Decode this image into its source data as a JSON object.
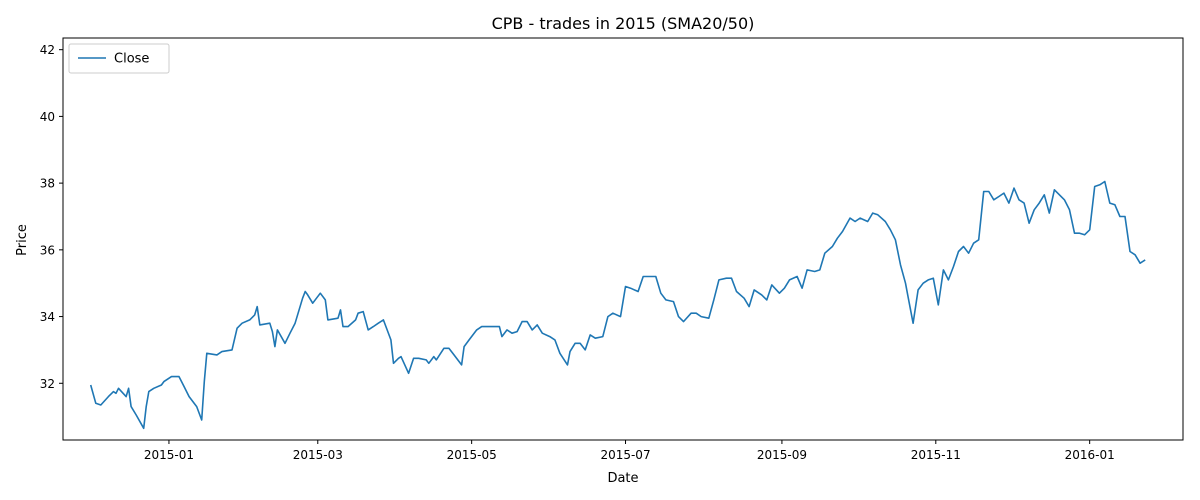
{
  "chart_data": {
    "type": "line",
    "title": "CPB - trades in 2015 (SMA20/50)",
    "xlabel": "Date",
    "ylabel": "Price",
    "xlim": [
      "2014-11-20",
      "2016-02-07"
    ],
    "ylim": [
      30.3,
      42.35
    ],
    "x_ticks": [
      "2015-01-01",
      "2015-03-01",
      "2015-05-01",
      "2015-07-01",
      "2015-09-01",
      "2015-11-01",
      "2016-01-01"
    ],
    "x_tick_labels": [
      "2015-01",
      "2015-03",
      "2015-05",
      "2015-07",
      "2015-09",
      "2015-11",
      "2016-01"
    ],
    "y_ticks": [
      32,
      34,
      36,
      38,
      40,
      42
    ],
    "y_tick_labels": [
      "32",
      "34",
      "36",
      "38",
      "40",
      "42"
    ],
    "grid": false,
    "legend_position": "top-left",
    "series": [
      {
        "name": "Close",
        "color": "#1f77b4",
        "points": [
          [
            "2014-12-01",
            31.95
          ],
          [
            "2014-12-03",
            31.4
          ],
          [
            "2014-12-05",
            31.35
          ],
          [
            "2014-12-08",
            31.6
          ],
          [
            "2014-12-10",
            31.75
          ],
          [
            "2014-12-11",
            31.7
          ],
          [
            "2014-12-12",
            31.85
          ],
          [
            "2014-12-15",
            31.6
          ],
          [
            "2014-12-16",
            31.85
          ],
          [
            "2014-12-17",
            31.3
          ],
          [
            "2014-12-19",
            31.05
          ],
          [
            "2014-12-22",
            30.65
          ],
          [
            "2014-12-23",
            31.3
          ],
          [
            "2014-12-24",
            31.75
          ],
          [
            "2014-12-26",
            31.85
          ],
          [
            "2014-12-29",
            31.95
          ],
          [
            "2014-12-30",
            32.05
          ],
          [
            "2015-01-02",
            32.2
          ],
          [
            "2015-01-05",
            32.2
          ],
          [
            "2015-01-07",
            31.9
          ],
          [
            "2015-01-09",
            31.6
          ],
          [
            "2015-01-12",
            31.3
          ],
          [
            "2015-01-14",
            30.9
          ],
          [
            "2015-01-15",
            32.05
          ],
          [
            "2015-01-16",
            32.9
          ],
          [
            "2015-01-20",
            32.85
          ],
          [
            "2015-01-22",
            32.95
          ],
          [
            "2015-01-26",
            33.0
          ],
          [
            "2015-01-28",
            33.65
          ],
          [
            "2015-01-30",
            33.8
          ],
          [
            "2015-02-02",
            33.9
          ],
          [
            "2015-02-04",
            34.05
          ],
          [
            "2015-02-05",
            34.3
          ],
          [
            "2015-02-06",
            33.75
          ],
          [
            "2015-02-10",
            33.8
          ],
          [
            "2015-02-11",
            33.55
          ],
          [
            "2015-02-12",
            33.1
          ],
          [
            "2015-02-13",
            33.6
          ],
          [
            "2015-02-16",
            33.2
          ],
          [
            "2015-02-18",
            33.5
          ],
          [
            "2015-02-20",
            33.8
          ],
          [
            "2015-02-23",
            34.55
          ],
          [
            "2015-02-24",
            34.75
          ],
          [
            "2015-02-25",
            34.65
          ],
          [
            "2015-02-27",
            34.4
          ],
          [
            "2015-03-02",
            34.7
          ],
          [
            "2015-03-04",
            34.5
          ],
          [
            "2015-03-05",
            33.9
          ],
          [
            "2015-03-09",
            33.95
          ],
          [
            "2015-03-10",
            34.2
          ],
          [
            "2015-03-11",
            33.7
          ],
          [
            "2015-03-13",
            33.7
          ],
          [
            "2015-03-16",
            33.9
          ],
          [
            "2015-03-17",
            34.1
          ],
          [
            "2015-03-19",
            34.15
          ],
          [
            "2015-03-21",
            33.6
          ],
          [
            "2015-03-23",
            33.7
          ],
          [
            "2015-03-25",
            33.8
          ],
          [
            "2015-03-27",
            33.9
          ],
          [
            "2015-03-30",
            33.3
          ],
          [
            "2015-03-31",
            32.6
          ],
          [
            "2015-04-02",
            32.75
          ],
          [
            "2015-04-03",
            32.8
          ],
          [
            "2015-04-06",
            32.3
          ],
          [
            "2015-04-08",
            32.75
          ],
          [
            "2015-04-10",
            32.75
          ],
          [
            "2015-04-13",
            32.7
          ],
          [
            "2015-04-14",
            32.6
          ],
          [
            "2015-04-16",
            32.8
          ],
          [
            "2015-04-17",
            32.7
          ],
          [
            "2015-04-20",
            33.05
          ],
          [
            "2015-04-22",
            33.05
          ],
          [
            "2015-04-24",
            32.85
          ],
          [
            "2015-04-27",
            32.55
          ],
          [
            "2015-04-28",
            33.1
          ],
          [
            "2015-04-30",
            33.3
          ],
          [
            "2015-05-03",
            33.6
          ],
          [
            "2015-05-05",
            33.7
          ],
          [
            "2015-05-08",
            33.7
          ],
          [
            "2015-05-12",
            33.7
          ],
          [
            "2015-05-13",
            33.4
          ],
          [
            "2015-05-15",
            33.6
          ],
          [
            "2015-05-17",
            33.5
          ],
          [
            "2015-05-19",
            33.55
          ],
          [
            "2015-05-21",
            33.85
          ],
          [
            "2015-05-23",
            33.85
          ],
          [
            "2015-05-25",
            33.6
          ],
          [
            "2015-05-27",
            33.75
          ],
          [
            "2015-05-29",
            33.5
          ],
          [
            "2015-06-01",
            33.4
          ],
          [
            "2015-06-03",
            33.3
          ],
          [
            "2015-06-05",
            32.9
          ],
          [
            "2015-06-08",
            32.55
          ],
          [
            "2015-06-09",
            32.95
          ],
          [
            "2015-06-11",
            33.2
          ],
          [
            "2015-06-13",
            33.2
          ],
          [
            "2015-06-15",
            33.0
          ],
          [
            "2015-06-17",
            33.45
          ],
          [
            "2015-06-19",
            33.35
          ],
          [
            "2015-06-22",
            33.4
          ],
          [
            "2015-06-24",
            34.0
          ],
          [
            "2015-06-26",
            34.1
          ],
          [
            "2015-06-29",
            34.0
          ],
          [
            "2015-07-01",
            34.9
          ],
          [
            "2015-07-03",
            34.85
          ],
          [
            "2015-07-06",
            34.75
          ],
          [
            "2015-07-08",
            35.2
          ],
          [
            "2015-07-10",
            35.2
          ],
          [
            "2015-07-13",
            35.2
          ],
          [
            "2015-07-15",
            34.7
          ],
          [
            "2015-07-17",
            34.5
          ],
          [
            "2015-07-20",
            34.45
          ],
          [
            "2015-07-22",
            34.0
          ],
          [
            "2015-07-24",
            33.85
          ],
          [
            "2015-07-27",
            34.1
          ],
          [
            "2015-07-29",
            34.1
          ],
          [
            "2015-07-31",
            34.0
          ],
          [
            "2015-08-03",
            33.95
          ],
          [
            "2015-08-05",
            34.5
          ],
          [
            "2015-08-07",
            35.1
          ],
          [
            "2015-08-10",
            35.15
          ],
          [
            "2015-08-12",
            35.15
          ],
          [
            "2015-08-14",
            34.75
          ],
          [
            "2015-08-17",
            34.55
          ],
          [
            "2015-08-19",
            34.3
          ],
          [
            "2015-08-21",
            34.8
          ],
          [
            "2015-08-24",
            34.65
          ],
          [
            "2015-08-26",
            34.5
          ],
          [
            "2015-08-28",
            34.95
          ],
          [
            "2015-08-31",
            34.7
          ],
          [
            "2015-09-02",
            34.85
          ],
          [
            "2015-09-04",
            35.1
          ],
          [
            "2015-09-07",
            35.2
          ],
          [
            "2015-09-09",
            34.85
          ],
          [
            "2015-09-11",
            35.4
          ],
          [
            "2015-09-14",
            35.35
          ],
          [
            "2015-09-16",
            35.4
          ],
          [
            "2015-09-18",
            35.9
          ],
          [
            "2015-09-21",
            36.1
          ],
          [
            "2015-09-23",
            36.35
          ],
          [
            "2015-09-25",
            36.55
          ],
          [
            "2015-09-28",
            36.95
          ],
          [
            "2015-09-30",
            36.85
          ],
          [
            "2015-10-02",
            36.95
          ],
          [
            "2015-10-05",
            36.85
          ],
          [
            "2015-10-07",
            37.1
          ],
          [
            "2015-10-09",
            37.05
          ],
          [
            "2015-10-12",
            36.85
          ],
          [
            "2015-10-14",
            36.6
          ],
          [
            "2015-10-16",
            36.3
          ],
          [
            "2015-10-18",
            35.55
          ],
          [
            "2015-10-20",
            35.0
          ],
          [
            "2015-10-21",
            34.6
          ],
          [
            "2015-10-23",
            33.8
          ],
          [
            "2015-10-25",
            34.8
          ],
          [
            "2015-10-27",
            35.0
          ],
          [
            "2015-10-29",
            35.1
          ],
          [
            "2015-10-31",
            35.15
          ],
          [
            "2015-11-02",
            34.35
          ],
          [
            "2015-11-04",
            35.4
          ],
          [
            "2015-11-06",
            35.1
          ],
          [
            "2015-11-08",
            35.5
          ],
          [
            "2015-11-10",
            35.95
          ],
          [
            "2015-11-12",
            36.1
          ],
          [
            "2015-11-14",
            35.9
          ],
          [
            "2015-11-16",
            36.2
          ],
          [
            "2015-11-18",
            36.3
          ],
          [
            "2015-11-20",
            37.75
          ],
          [
            "2015-11-22",
            37.75
          ],
          [
            "2015-11-24",
            37.5
          ],
          [
            "2015-11-26",
            37.6
          ],
          [
            "2015-11-28",
            37.7
          ],
          [
            "2015-11-30",
            37.4
          ],
          [
            "2015-12-02",
            37.85
          ],
          [
            "2015-12-04",
            37.5
          ],
          [
            "2015-12-06",
            37.4
          ],
          [
            "2015-12-08",
            36.8
          ],
          [
            "2015-12-10",
            37.2
          ],
          [
            "2015-12-12",
            37.4
          ],
          [
            "2015-12-14",
            37.65
          ],
          [
            "2015-12-16",
            37.1
          ],
          [
            "2015-12-18",
            37.8
          ],
          [
            "2015-12-20",
            37.65
          ],
          [
            "2015-12-22",
            37.5
          ],
          [
            "2015-12-24",
            37.2
          ],
          [
            "2015-12-26",
            36.5
          ],
          [
            "2015-12-28",
            36.5
          ],
          [
            "2015-12-30",
            36.45
          ],
          [
            "2016-01-01",
            36.6
          ],
          [
            "2016-01-03",
            37.9
          ],
          [
            "2016-01-05",
            37.95
          ],
          [
            "2016-01-07",
            38.05
          ],
          [
            "2016-01-09",
            37.4
          ],
          [
            "2016-01-11",
            37.35
          ],
          [
            "2016-01-13",
            37.0
          ],
          [
            "2016-01-15",
            37.0
          ],
          [
            "2016-01-17",
            35.95
          ],
          [
            "2016-01-19",
            35.85
          ],
          [
            "2016-01-21",
            35.6
          ],
          [
            "2016-01-23",
            35.7
          ]
        ]
      }
    ]
  }
}
